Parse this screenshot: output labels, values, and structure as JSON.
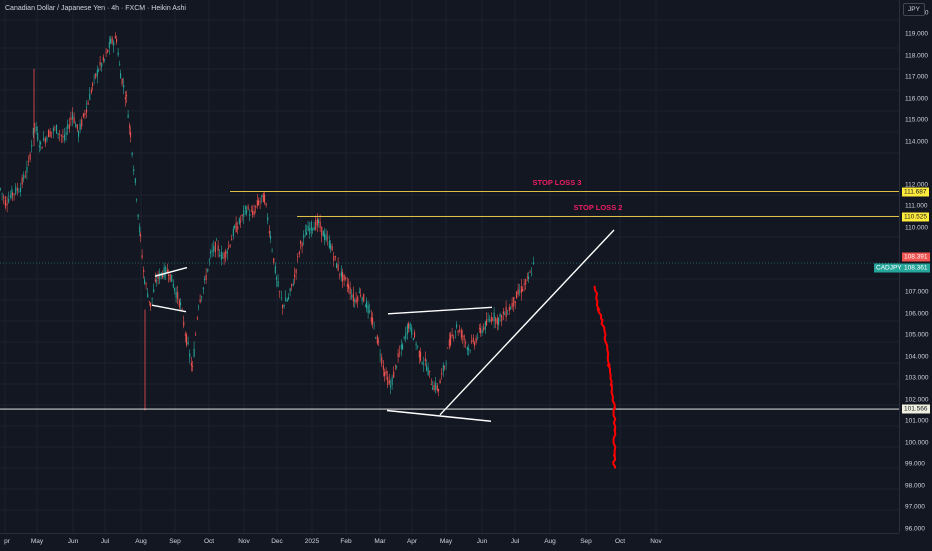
{
  "header": {
    "title": "Canadian Dollar / Japanese Yen · 4h · FXCM · Heikin Ashi"
  },
  "price_axis": {
    "currency": "JPY",
    "ticks": [
      "120.000",
      "119.000",
      "118.000",
      "117.000",
      "116.000",
      "115.000",
      "114.000",
      "112.000",
      "111.000",
      "110.000",
      "108.000",
      "107.000",
      "106.000",
      "105.000",
      "104.000",
      "103.000",
      "102.000",
      "101.000",
      "100.000",
      "99.000",
      "98.000",
      "97.000",
      "96.000"
    ],
    "labels": {
      "stop_loss_3": "111.687",
      "stop_loss_2": "110.525",
      "prev_close": "108.391",
      "symbol": "CADJPY",
      "last_price": "108.361",
      "support": "101.566"
    }
  },
  "time_axis": {
    "ticks": [
      "pr",
      "May",
      "Jun",
      "Jul",
      "Aug",
      "Sep",
      "Oct",
      "Nov",
      "Dec",
      "2025",
      "Feb",
      "Mar",
      "Apr",
      "May",
      "Jun",
      "Jul",
      "Aug",
      "Sep",
      "Oct",
      "Nov"
    ]
  },
  "annotations": {
    "stop_loss_3": "STOP LOSS 3",
    "stop_loss_2": "STOP LOSS 2"
  },
  "colors": {
    "up": "#26a69a",
    "down": "#ef5350",
    "line": "#ffffff",
    "stop": "#f9d74a",
    "projection": "#ff0000",
    "label_text": "#e91e63"
  },
  "chart_data": {
    "type": "candlestick",
    "symbol": "CADJPY",
    "timeframe": "4h",
    "series": [
      {
        "values": [
          [
            0,
            111.8
          ],
          [
            5,
            111.2
          ],
          [
            12,
            111.6
          ],
          [
            20,
            111.9
          ],
          [
            28,
            112.9
          ],
          [
            34,
            114.8
          ],
          [
            40,
            113.8
          ],
          [
            48,
            114.4
          ],
          [
            56,
            114.6
          ],
          [
            64,
            114.1
          ],
          [
            72,
            115.3
          ],
          [
            78,
            114.4
          ],
          [
            86,
            115.6
          ],
          [
            92,
            116.6
          ],
          [
            98,
            117.4
          ],
          [
            104,
            117.8
          ],
          [
            110,
            118.6
          ],
          [
            116,
            118.8
          ],
          [
            120,
            117.2
          ],
          [
            126,
            116.0
          ],
          [
            130,
            114.4
          ],
          [
            136,
            111.5
          ],
          [
            140,
            109.5
          ],
          [
            144,
            107.6
          ],
          [
            150,
            106.4
          ],
          [
            156,
            107.6
          ],
          [
            162,
            107.9
          ],
          [
            168,
            108.0
          ],
          [
            174,
            107.2
          ],
          [
            180,
            106.4
          ],
          [
            186,
            104.8
          ],
          [
            192,
            103.4
          ],
          [
            198,
            106.5
          ],
          [
            204,
            107.4
          ],
          [
            210,
            108.7
          ],
          [
            216,
            109.2
          ],
          [
            222,
            108.6
          ],
          [
            228,
            109.1
          ],
          [
            234,
            109.9
          ],
          [
            240,
            110.3
          ],
          [
            246,
            110.9
          ],
          [
            252,
            110.6
          ],
          [
            258,
            111.2
          ],
          [
            264,
            111.4
          ],
          [
            270,
            109.6
          ],
          [
            276,
            107.6
          ],
          [
            282,
            106.4
          ],
          [
            288,
            106.7
          ],
          [
            294,
            107.7
          ],
          [
            300,
            109.2
          ],
          [
            306,
            109.8
          ],
          [
            312,
            110.1
          ],
          [
            318,
            110.2
          ],
          [
            324,
            109.6
          ],
          [
            330,
            109.2
          ],
          [
            336,
            108.3
          ],
          [
            342,
            107.7
          ],
          [
            348,
            107.3
          ],
          [
            354,
            106.6
          ],
          [
            360,
            107.0
          ],
          [
            366,
            106.4
          ],
          [
            372,
            105.6
          ],
          [
            378,
            104.6
          ],
          [
            384,
            103.3
          ],
          [
            390,
            102.6
          ],
          [
            396,
            103.7
          ],
          [
            402,
            104.5
          ],
          [
            408,
            105.5
          ],
          [
            414,
            104.9
          ],
          [
            420,
            104.0
          ],
          [
            426,
            103.6
          ],
          [
            432,
            102.7
          ],
          [
            438,
            102.5
          ],
          [
            444,
            103.6
          ],
          [
            450,
            104.8
          ],
          [
            456,
            105.4
          ],
          [
            462,
            105.0
          ],
          [
            468,
            104.4
          ],
          [
            474,
            104.7
          ],
          [
            480,
            105.2
          ],
          [
            486,
            105.5
          ],
          [
            492,
            105.9
          ],
          [
            498,
            105.7
          ],
          [
            504,
            106.0
          ],
          [
            510,
            106.3
          ],
          [
            516,
            106.8
          ],
          [
            522,
            107.2
          ],
          [
            528,
            107.6
          ],
          [
            534,
            108.4
          ]
        ]
      },
      {
        "name": "",
        "values": [
          [
            595,
            107.3
          ],
          [
            598,
            106.2
          ],
          [
            602,
            105.7
          ],
          [
            606,
            104.7
          ],
          [
            609,
            103.6
          ],
          [
            612,
            102.7
          ],
          [
            614,
            101.6
          ],
          [
            615,
            100.6
          ],
          [
            614,
            99.4
          ],
          [
            614,
            98.8
          ]
        ]
      }
    ],
    "lines": [
      {
        "label": "STOP LOSS 3",
        "y": 111.687
      },
      {
        "label": "STOP LOSS 2",
        "y": 110.525
      },
      {
        "label": "",
        "y": 101.566
      }
    ],
    "yticks": [
      120,
      119,
      118,
      117,
      116,
      115,
      114,
      112,
      111,
      110,
      108,
      107,
      106,
      105,
      104,
      103,
      102,
      101,
      100,
      99,
      98,
      97,
      96
    ],
    "ylim": [
      95.8,
      120.6
    ],
    "xlabel": "",
    "ylabel": ""
  }
}
